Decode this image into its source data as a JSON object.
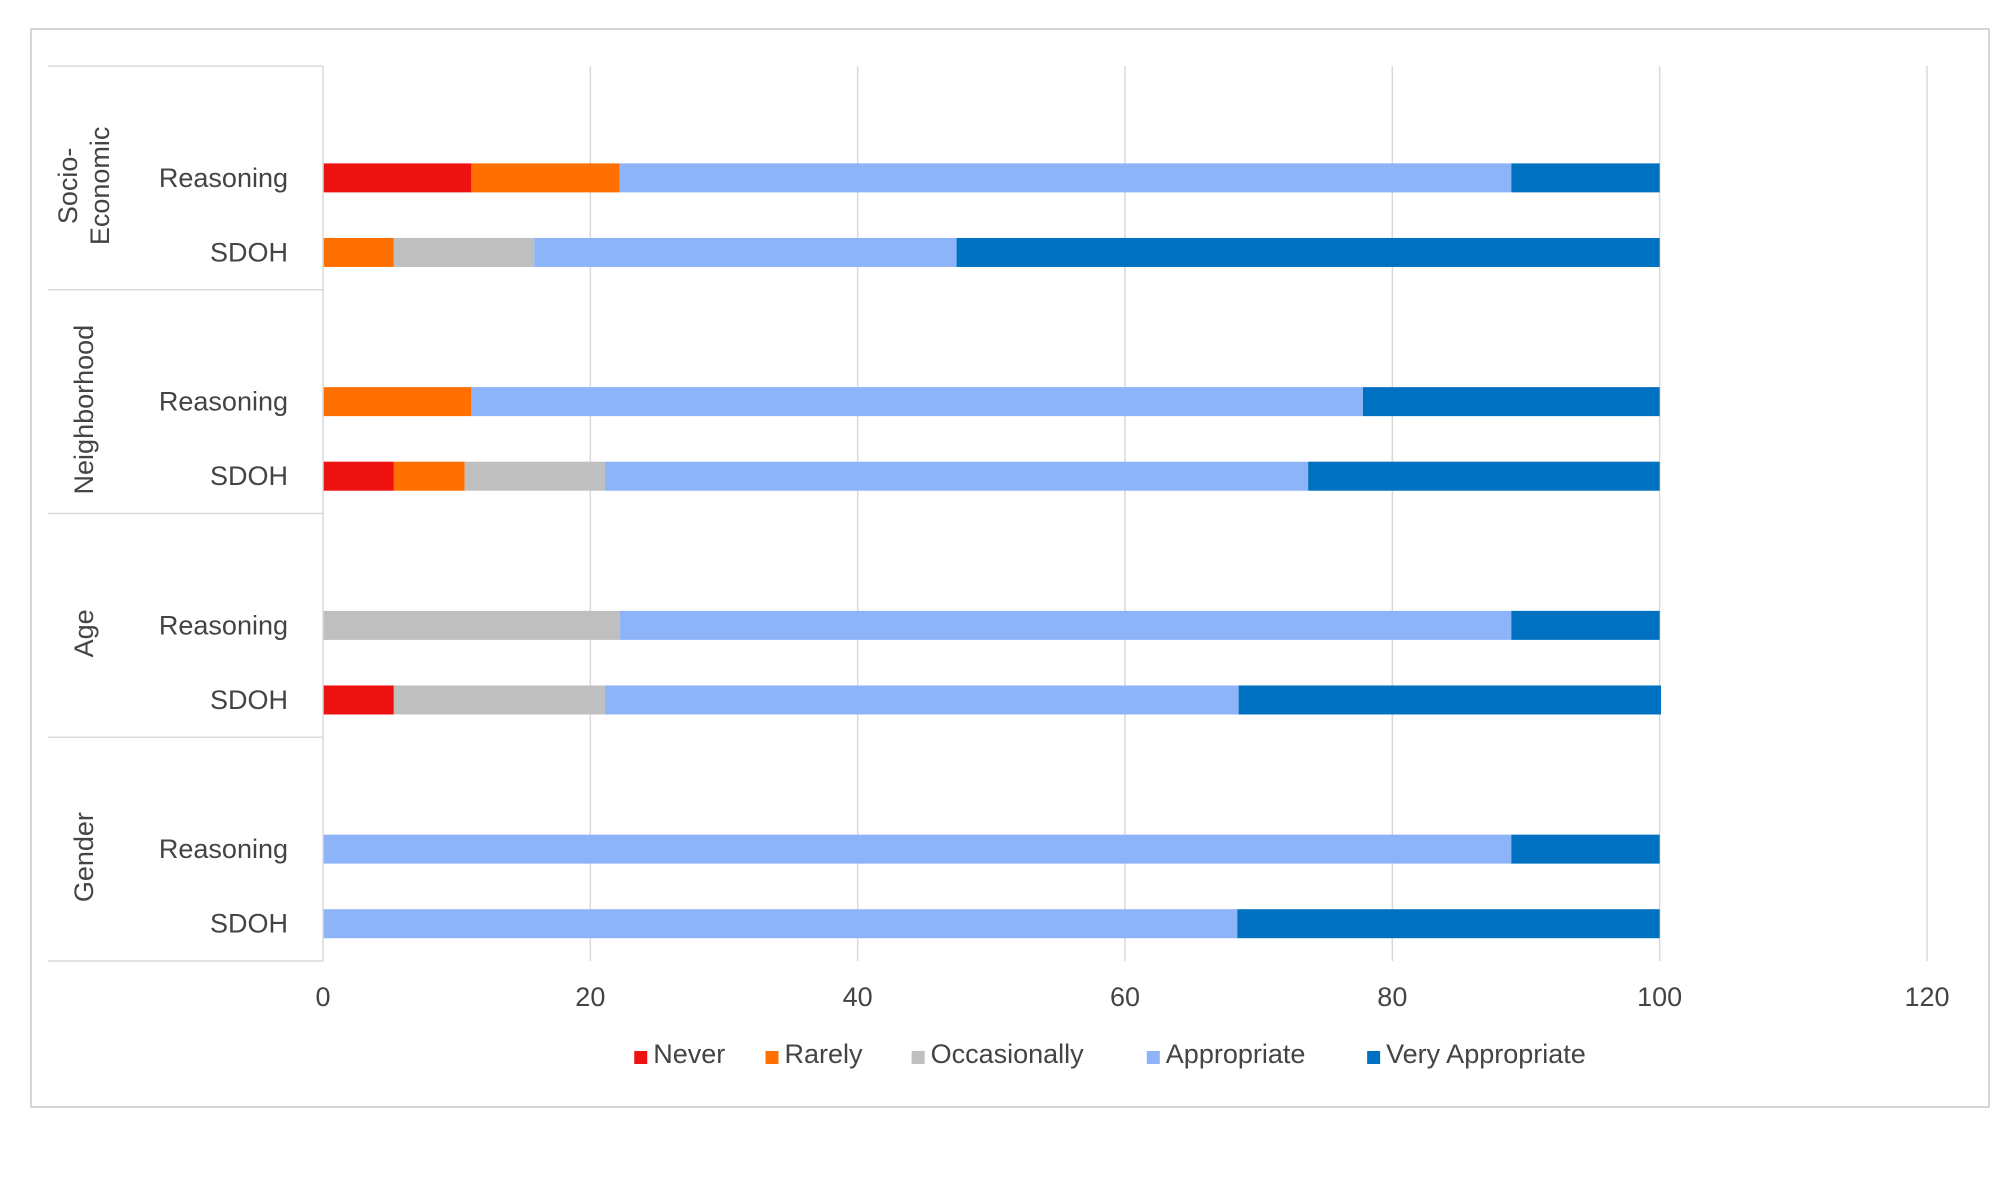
{
  "chart_data": {
    "type": "bar",
    "orientation": "horizontal",
    "stacked": true,
    "xlim": [
      0,
      120
    ],
    "x_ticks": [
      "0",
      "20",
      "40",
      "60",
      "80",
      "100",
      "120"
    ],
    "grid": true,
    "legend_position": "bottom",
    "groups": [
      {
        "label": "Socio-\nEconomic",
        "rows": [
          "Reasoning",
          "SDOH"
        ]
      },
      {
        "label": "Neighborhood",
        "rows": [
          "Reasoning",
          "SDOH"
        ]
      },
      {
        "label": "Age",
        "rows": [
          "Reasoning",
          "SDOH"
        ]
      },
      {
        "label": "Gender",
        "rows": [
          "Reasoning",
          "SDOH"
        ]
      }
    ],
    "series": [
      {
        "name": "Never",
        "color": "#ee1111",
        "values": [
          11.1,
          0,
          0,
          5.3,
          0,
          5.3,
          0,
          0
        ]
      },
      {
        "name": "Rarely",
        "color": "#ff7000",
        "values": [
          11.1,
          5.3,
          11.1,
          5.3,
          0,
          0,
          0,
          0
        ]
      },
      {
        "name": "Occasionally",
        "color": "#bfbfbf",
        "values": [
          0,
          10.5,
          0,
          10.5,
          22.2,
          15.8,
          0,
          0
        ]
      },
      {
        "name": "Appropriate",
        "color": "#8db4f9",
        "values": [
          66.7,
          31.6,
          66.7,
          52.6,
          66.7,
          47.4,
          88.9,
          68.4
        ]
      },
      {
        "name": "Very Appropriate",
        "color": "#0070c0",
        "values": [
          11.1,
          52.6,
          22.2,
          26.3,
          11.1,
          31.6,
          11.1,
          31.6
        ]
      }
    ]
  }
}
